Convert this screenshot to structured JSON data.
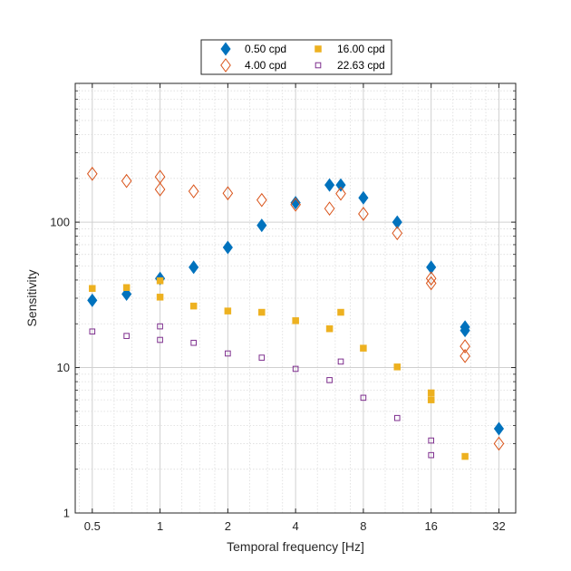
{
  "chart_data": {
    "type": "scatter",
    "xscale": "log2",
    "yscale": "log10",
    "xlabel": "Temporal frequency [Hz]",
    "ylabel": "Sensitivity",
    "xlim": [
      0.42,
      38
    ],
    "ylim": [
      1,
      900
    ],
    "xticks": [
      0.5,
      1,
      2,
      4,
      8,
      16,
      32
    ],
    "xtick_labels": [
      "0.5",
      "1",
      "2",
      "4",
      "8",
      "16",
      "32"
    ],
    "yticks": [
      1,
      10,
      100
    ],
    "ytick_labels": [
      "1",
      "10",
      "100"
    ],
    "grid": true,
    "legend_position": "top-center",
    "series": [
      {
        "name": "0.50 cpd",
        "marker": "diamond-filled",
        "color": "#0072BD",
        "x": [
          0.5,
          0.71,
          1,
          1.41,
          2,
          2.83,
          4,
          5.66,
          6.35,
          8,
          11.31,
          16,
          22.63,
          22.63,
          32
        ],
        "y": [
          29,
          32,
          41,
          49,
          67,
          95,
          136,
          180,
          180,
          147,
          100,
          49,
          19,
          18,
          3.8
        ]
      },
      {
        "name": "4.00 cpd",
        "marker": "diamond-open",
        "color": "#D95319",
        "x": [
          0.5,
          0.71,
          1,
          1,
          1.41,
          2,
          2.83,
          4,
          5.66,
          6.35,
          8,
          11.31,
          16,
          16,
          22.63,
          22.63,
          32
        ],
        "y": [
          215,
          192,
          205,
          168,
          163,
          158,
          142,
          132,
          124,
          157,
          114,
          84,
          41,
          38,
          14,
          12,
          3
        ]
      },
      {
        "name": "16.00 cpd",
        "marker": "square-filled",
        "color": "#EDB120",
        "x": [
          0.5,
          0.71,
          1,
          1,
          1.41,
          2,
          2.83,
          4,
          5.66,
          6.35,
          8,
          11.31,
          16,
          16,
          22.63
        ],
        "y": [
          35,
          35.5,
          39.5,
          30.5,
          26.5,
          24.5,
          24,
          21,
          18.5,
          24,
          13.6,
          10.1,
          6.7,
          6,
          2.45
        ]
      },
      {
        "name": "22.63 cpd",
        "marker": "square-open",
        "color": "#7E2F8E",
        "x": [
          0.5,
          0.71,
          1,
          1,
          1.41,
          2,
          2.83,
          4,
          5.66,
          6.35,
          8,
          11.31,
          16,
          16
        ],
        "y": [
          17.7,
          16.5,
          19.2,
          15.5,
          14.8,
          12.5,
          11.7,
          9.8,
          8.2,
          11,
          6.2,
          4.5,
          3.15,
          2.5
        ]
      }
    ]
  }
}
